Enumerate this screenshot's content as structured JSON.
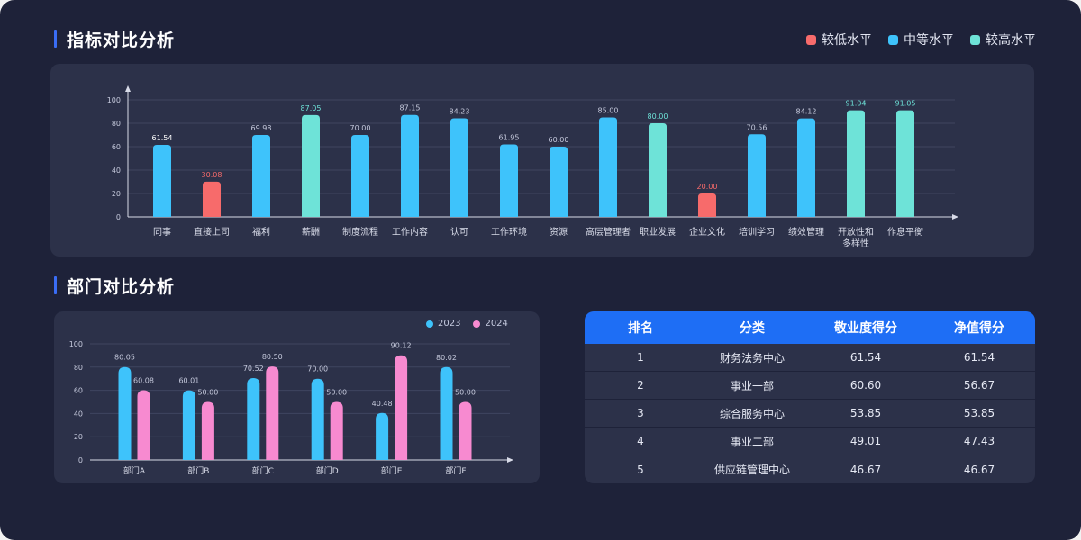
{
  "section1": {
    "title": "指标对比分析"
  },
  "section2": {
    "title": "部门对比分析"
  },
  "legend_top": [
    {
      "label": "较低水平",
      "color": "#f76b6b"
    },
    {
      "label": "中等水平",
      "color": "#3ec3fb"
    },
    {
      "label": "较高水平",
      "color": "#6ee3d8"
    }
  ],
  "colors": {
    "low": "#f76b6b",
    "mid": "#3ec3fb",
    "high": "#6ee3d8",
    "y2023": "#3ec3fb",
    "y2024": "#f78ad0"
  },
  "chart_data": [
    {
      "type": "bar",
      "categories": [
        "同事",
        "直接上司",
        "福利",
        "薪酬",
        "制度流程",
        "工作内容",
        "认可",
        "工作环境",
        "资源",
        "高层管理者",
        "职业发展",
        "企业文化",
        "培训学习",
        "绩效管理",
        "开放性和\n多样性",
        "作息平衡"
      ],
      "values": [
        61.54,
        30.08,
        69.98,
        87.05,
        70.0,
        87.15,
        84.23,
        61.95,
        60.0,
        85.0,
        80.0,
        20.0,
        70.56,
        84.12,
        91.04,
        91.05
      ],
      "value_labels": [
        "61.54",
        "30.08",
        "69.98",
        "87.05",
        "70.00",
        "87.15",
        "84.23",
        "61.95",
        "60.00",
        "85.00",
        "80.00",
        "20.00",
        "70.56",
        "84.12",
        "91.04",
        "91.05"
      ],
      "levels": [
        "mid",
        "low",
        "mid",
        "high",
        "mid",
        "mid",
        "mid",
        "mid",
        "mid",
        "mid",
        "high",
        "low",
        "mid",
        "mid",
        "high",
        "high"
      ],
      "ylim": [
        0,
        100
      ],
      "yticks": [
        0,
        20,
        40,
        60,
        80,
        100
      ],
      "grid": true
    },
    {
      "type": "bar",
      "categories": [
        "部门A",
        "部门B",
        "部门C",
        "部门D",
        "部门E",
        "部门F"
      ],
      "series": [
        {
          "name": "2023",
          "values": [
            80.05,
            60.01,
            70.52,
            70.0,
            40.48,
            80.02
          ],
          "labels": [
            "80.05",
            "60.01",
            "70.52",
            "70.00",
            "40.48",
            "80.02"
          ]
        },
        {
          "name": "2024",
          "values": [
            60.08,
            50.0,
            80.5,
            50.0,
            90.12,
            50.0
          ],
          "labels": [
            "60.08",
            "50.00",
            "80.50",
            "50.00",
            "90.12",
            "50.00"
          ]
        }
      ],
      "ylim": [
        0,
        100
      ],
      "yticks": [
        0,
        20,
        40,
        60,
        80,
        100
      ],
      "legend": "top-right",
      "grid": true
    }
  ],
  "table": {
    "headers": [
      "排名",
      "分类",
      "敬业度得分",
      "净值得分"
    ],
    "rows": [
      [
        "1",
        "财务法务中心",
        "61.54",
        "61.54"
      ],
      [
        "2",
        "事业一部",
        "60.60",
        "56.67"
      ],
      [
        "3",
        "综合服务中心",
        "53.85",
        "53.85"
      ],
      [
        "4",
        "事业二部",
        "49.01",
        "47.43"
      ],
      [
        "5",
        "供应链管理中心",
        "46.67",
        "46.67"
      ]
    ]
  }
}
